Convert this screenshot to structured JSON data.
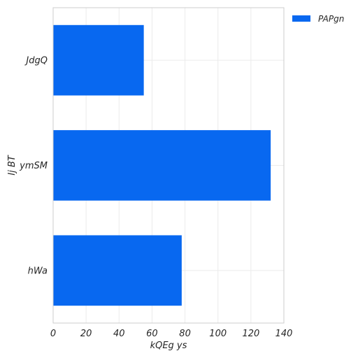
{
  "chart_data": {
    "type": "bar",
    "orientation": "horizontal",
    "categories": [
      "JdgQ",
      "ymSM",
      "hWa"
    ],
    "series": [
      {
        "name": "PAPgn",
        "values": [
          55,
          132,
          78
        ],
        "color": "#0868f0"
      }
    ],
    "xlabel": "kQEg ys",
    "ylabel": "Ij BT",
    "xlim": [
      0,
      140
    ],
    "xticks": [
      0,
      20,
      40,
      60,
      80,
      100,
      120,
      140
    ],
    "grid": true,
    "legend_position": "outside-top-right"
  }
}
